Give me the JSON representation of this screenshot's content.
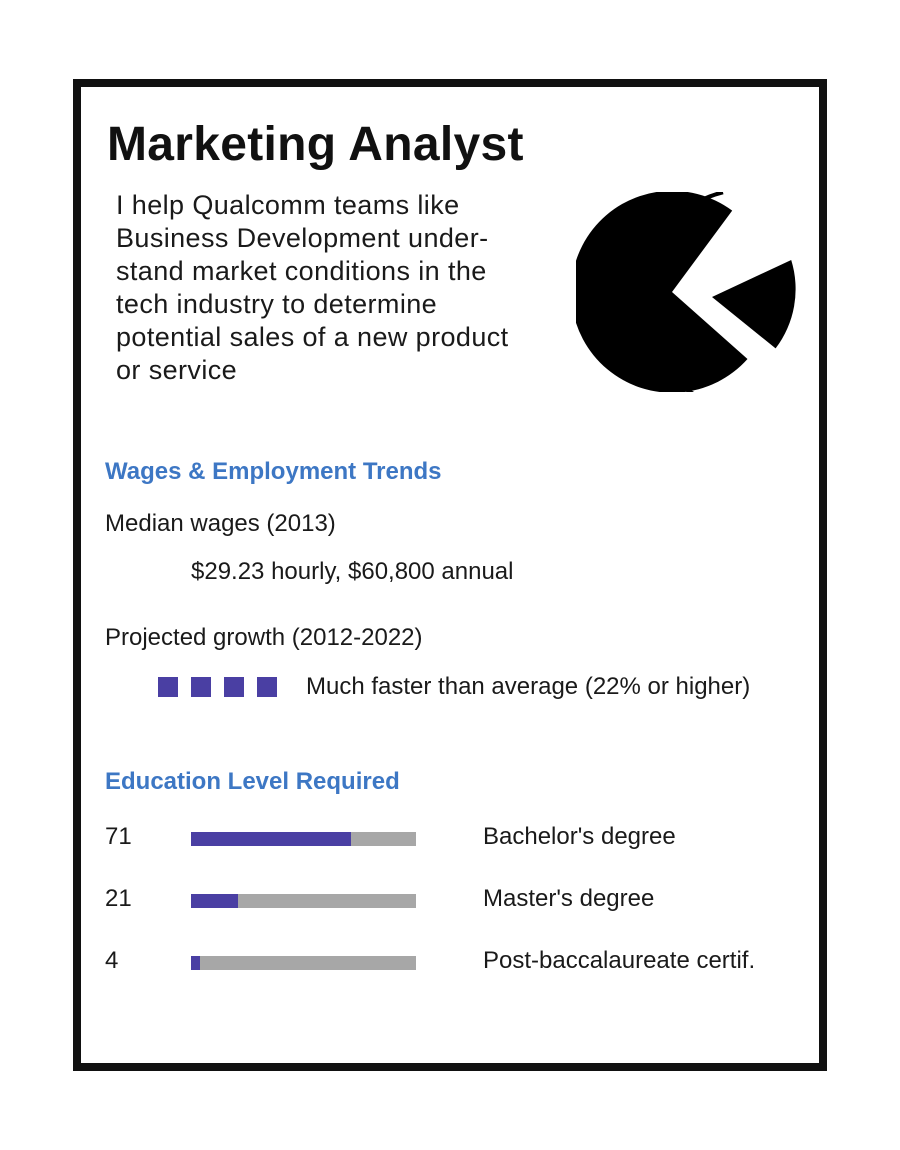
{
  "card": {
    "title": "Marketing Analyst",
    "description": "I help Qualcomm teams like\nBusiness Development under-\nstand market conditions in the\ntech industry to determine\npotential sales of a new product\nor service",
    "icon": "pie-chart-icon"
  },
  "wages": {
    "heading": "Wages &  Employment Trends",
    "median_label": "Median wages (2013)",
    "median_value": "$29.23 hourly, $60,800 annual",
    "growth_label": "Projected growth (2012-2022)",
    "growth_level": 4,
    "growth_text": "Much faster than average (22% or higher)"
  },
  "education": {
    "heading": "Education Level Required",
    "rows": [
      {
        "value": "71",
        "percent": 71,
        "label": "Bachelor's degree"
      },
      {
        "value": "21",
        "percent": 21,
        "label": "Master's degree"
      },
      {
        "value": "4",
        "percent": 4,
        "label": "Post-baccalaureate certif."
      }
    ]
  },
  "colors": {
    "accent_heading": "#3d77c4",
    "bar_fill": "#4a3fa3",
    "bar_track": "#a7a7a7",
    "border": "#111111"
  }
}
